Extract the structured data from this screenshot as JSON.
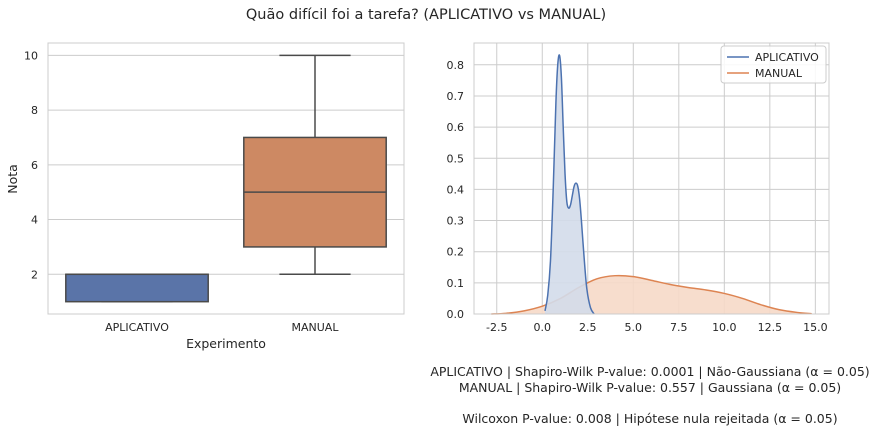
{
  "figure": {
    "suptitle": "Quão difícil foi a tarefa? (APLICATIVO vs MANUAL)",
    "captions": [
      "APLICATIVO | Shapiro-Wilk P-value: 0.0001 | Não-Gaussiana (α = 0.05)",
      "MANUAL | Shapiro-Wilk P-value: 0.557 | Gaussiana (α = 0.05)",
      "Wilcoxon P-value: 0.008 | Hipótese nula rejeitada (α = 0.05)"
    ]
  },
  "chart_data": [
    {
      "type": "box",
      "xlabel": "Experimento",
      "ylabel": "Nota",
      "categories": [
        "APLICATIVO",
        "MANUAL"
      ],
      "boxes": [
        {
          "name": "APLICATIVO",
          "color": "#5a74a8",
          "whisker_low": 1,
          "q1": 1,
          "median": 2,
          "q3": 2,
          "whisker_high": 2
        },
        {
          "name": "MANUAL",
          "color": "#cd8963",
          "whisker_low": 2,
          "q1": 3,
          "median": 5,
          "q3": 7,
          "whisker_high": 10
        }
      ],
      "ylim": [
        0.55,
        10.45
      ],
      "yticks": [
        2,
        4,
        6,
        8,
        10
      ],
      "grid": true
    },
    {
      "type": "area",
      "title": "",
      "xlim": [
        -3.75,
        15.75
      ],
      "ylim": [
        0,
        0.87
      ],
      "xticks": [
        -2.5,
        0.0,
        2.5,
        5.0,
        7.5,
        10.0,
        12.5,
        15.0
      ],
      "yticks": [
        0.0,
        0.1,
        0.2,
        0.3,
        0.4,
        0.5,
        0.6,
        0.7,
        0.8
      ],
      "grid": true,
      "legend": "top-right",
      "series": [
        {
          "name": "APLICATIVO",
          "color": "#4c72b0",
          "fill": "#d3dbea",
          "x": [
            0.15,
            0.3,
            0.45,
            0.6,
            0.75,
            0.85,
            0.95,
            1.05,
            1.15,
            1.25,
            1.35,
            1.45,
            1.55,
            1.65,
            1.75,
            1.85,
            1.95,
            2.05,
            2.15,
            2.3,
            2.45,
            2.65,
            2.85
          ],
          "y": [
            0.01,
            0.06,
            0.17,
            0.4,
            0.68,
            0.8,
            0.83,
            0.76,
            0.6,
            0.45,
            0.36,
            0.34,
            0.35,
            0.38,
            0.41,
            0.42,
            0.41,
            0.37,
            0.3,
            0.18,
            0.08,
            0.02,
            0.0
          ]
        },
        {
          "name": "MANUAL",
          "color": "#dd8452",
          "fill": "#f6d9c8",
          "x": [
            -2.8,
            -2.0,
            -1.0,
            0.0,
            1.0,
            2.0,
            3.0,
            4.0,
            5.0,
            6.0,
            7.0,
            8.0,
            9.0,
            10.0,
            11.0,
            12.0,
            13.0,
            14.0,
            14.8
          ],
          "y": [
            0.0,
            0.002,
            0.01,
            0.025,
            0.05,
            0.085,
            0.113,
            0.123,
            0.12,
            0.108,
            0.095,
            0.085,
            0.077,
            0.066,
            0.05,
            0.03,
            0.014,
            0.005,
            0.001
          ]
        }
      ]
    }
  ]
}
